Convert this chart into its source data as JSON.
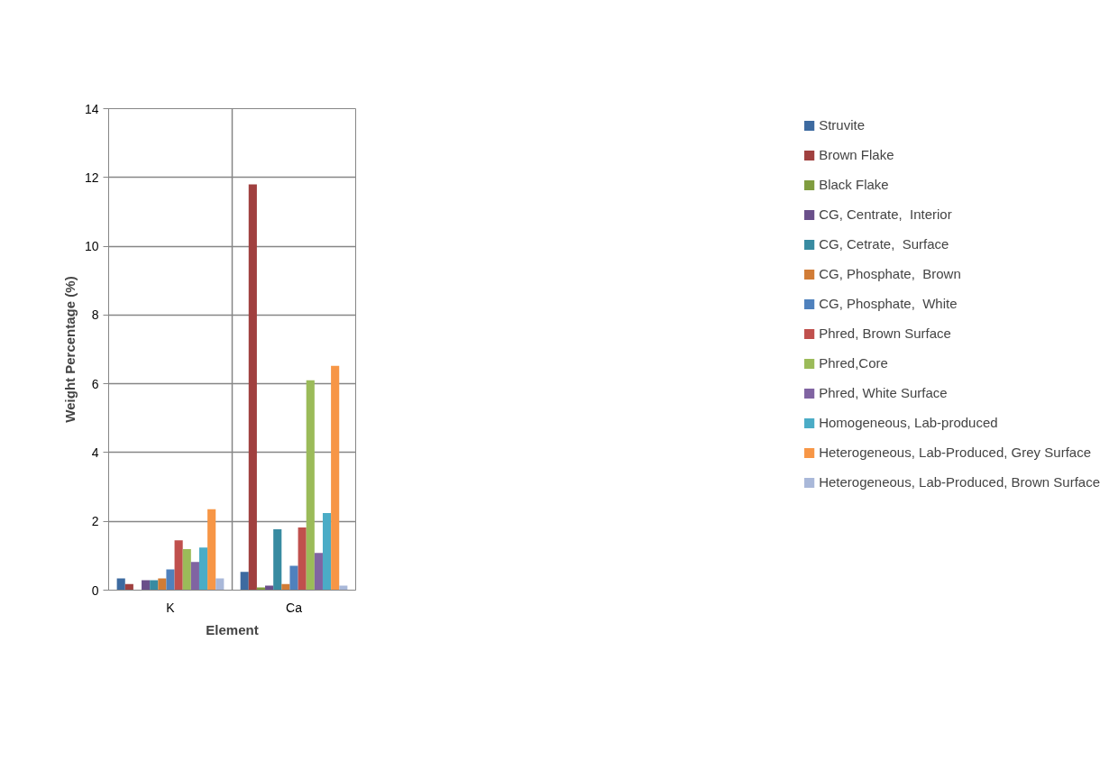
{
  "chart_data": {
    "type": "bar",
    "xlabel": "Element",
    "ylabel": "Weight Percentage (%)",
    "categories": [
      "K",
      "Ca"
    ],
    "series": [
      {
        "name": "Struvite",
        "color": "#3d6aa0",
        "values": [
          0.34,
          0.53
        ]
      },
      {
        "name": "Brown Flake",
        "color": "#a0403f",
        "values": [
          0.18,
          11.8
        ]
      },
      {
        "name": "Black Flake",
        "color": "#7f9c3f",
        "values": [
          0,
          0.08
        ]
      },
      {
        "name": "CG, Centrate,  Interior",
        "color": "#6a4f8a",
        "values": [
          0.29,
          0.13
        ]
      },
      {
        "name": "CG, Cetrate,  Surface",
        "color": "#388ba1",
        "values": [
          0.29,
          1.77
        ]
      },
      {
        "name": "CG, Phosphate,  Brown",
        "color": "#d17c36",
        "values": [
          0.34,
          0.18
        ]
      },
      {
        "name": "CG, Phosphate,  White",
        "color": "#4f81bd",
        "values": [
          0.6,
          0.71
        ]
      },
      {
        "name": "Phred, Brown Surface",
        "color": "#c0504d",
        "values": [
          1.45,
          1.82
        ]
      },
      {
        "name": "Phred,Core",
        "color": "#9bbb59",
        "values": [
          1.19,
          6.1
        ]
      },
      {
        "name": "Phred, White Surface",
        "color": "#8064a2",
        "values": [
          0.82,
          1.08
        ]
      },
      {
        "name": "Homogeneous, Lab-produced",
        "color": "#4bacc6",
        "values": [
          1.24,
          2.24
        ]
      },
      {
        "name": "Heterogeneous, Lab-Produced, Grey Surface",
        "color": "#f79646",
        "values": [
          2.35,
          6.52
        ]
      },
      {
        "name": "Heterogeneous, Lab-Produced, Brown Surface",
        "color": "#a9b8d9",
        "values": [
          0.34,
          0.13
        ]
      }
    ],
    "ylim": [
      0,
      14
    ],
    "yticks": [
      0,
      2,
      4,
      6,
      8,
      10,
      12,
      14
    ],
    "grid": true,
    "legend": "right"
  }
}
